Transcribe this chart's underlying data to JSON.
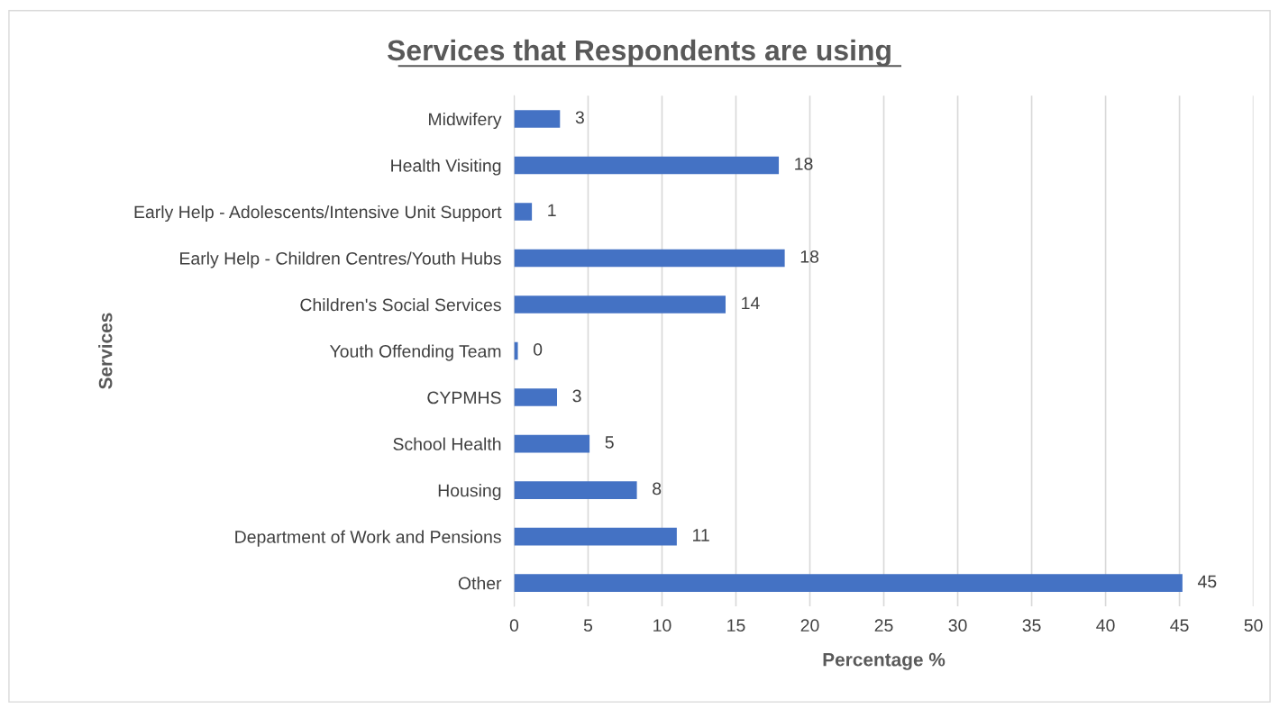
{
  "chart_data": {
    "type": "bar",
    "orientation": "horizontal",
    "title": "Services that Respondents are using",
    "xlabel": "Percentage %",
    "ylabel": "Services",
    "categories": [
      "Midwifery",
      "Health Visiting",
      "Early Help - Adolescents/Intensive Unit Support",
      "Early Help - Children Centres/Youth Hubs",
      "Children's Social Services",
      "Youth Offending Team",
      "CYPMHS",
      "School Health",
      "Housing",
      "Department of Work and Pensions",
      "Other"
    ],
    "values": [
      3.1,
      17.9,
      1.2,
      18.3,
      14.3,
      0.25,
      2.9,
      5.1,
      8.3,
      11.0,
      45.2
    ],
    "value_labels": [
      "3",
      "18",
      "1",
      "18",
      "14",
      "0",
      "3",
      "5",
      "8",
      "11",
      "45"
    ],
    "color": "#4472c4",
    "xlim": [
      0,
      50
    ],
    "xticks": [
      0,
      5,
      10,
      15,
      20,
      25,
      30,
      35,
      40,
      45,
      50
    ],
    "grid": "x",
    "legend": false
  }
}
